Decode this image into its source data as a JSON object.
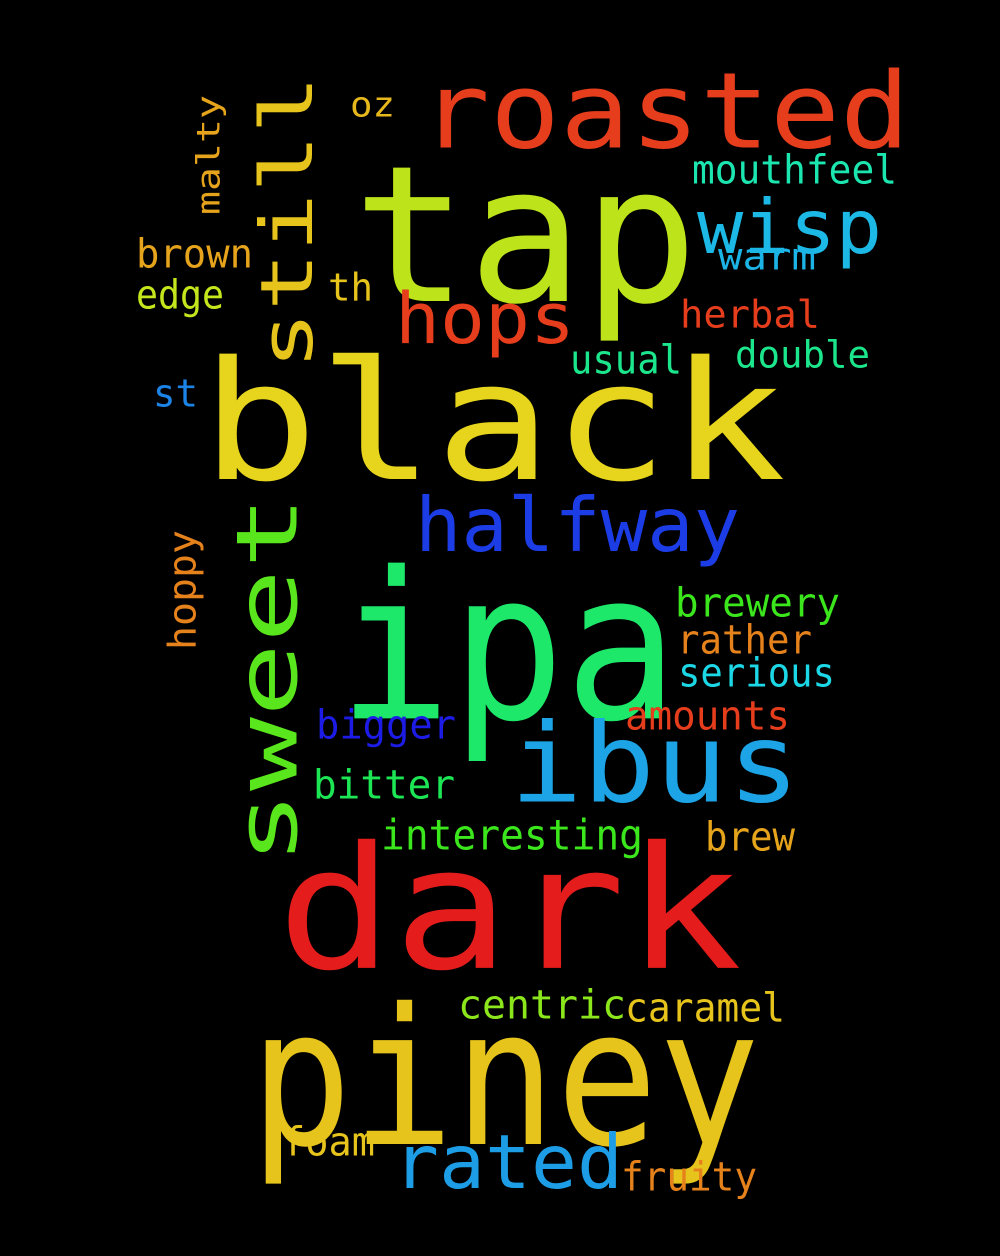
{
  "words": [
    {
      "text": "tap",
      "color": "#bde31a"
    },
    {
      "text": "black",
      "color": "#e6d51c"
    },
    {
      "text": "ipa",
      "color": "#1de86a"
    },
    {
      "text": "dark",
      "color": "#e51c1c"
    },
    {
      "text": "piney",
      "color": "#e6c41c"
    },
    {
      "text": "roasted",
      "color": "#e63d1c"
    },
    {
      "text": "sweet",
      "color": "#5ae61c"
    },
    {
      "text": "ibus",
      "color": "#1ca4e6"
    },
    {
      "text": "still",
      "color": "#e6c41c"
    },
    {
      "text": "halfway",
      "color": "#1c3ce6"
    },
    {
      "text": "rated",
      "color": "#1c9de6"
    },
    {
      "text": "wisp",
      "color": "#1cb8e6"
    },
    {
      "text": "hops",
      "color": "#e63d1c"
    },
    {
      "text": "mouthfeel",
      "color": "#1ce6b0"
    },
    {
      "text": "warm",
      "color": "#1cb4e6"
    },
    {
      "text": "herbal",
      "color": "#e63d1c"
    },
    {
      "text": "double",
      "color": "#1ce68c"
    },
    {
      "text": "usual",
      "color": "#1ce68c"
    },
    {
      "text": "oz",
      "color": "#e6b81c"
    },
    {
      "text": "malty",
      "color": "#e6a41c"
    },
    {
      "text": "brown",
      "color": "#e6a41c"
    },
    {
      "text": "edge",
      "color": "#c4e61c"
    },
    {
      "text": "th",
      "color": "#e6c41c"
    },
    {
      "text": "st",
      "color": "#1c84e6"
    },
    {
      "text": "hoppy",
      "color": "#e6821c"
    },
    {
      "text": "brewery",
      "color": "#3ce61c"
    },
    {
      "text": "rather",
      "color": "#e6821c"
    },
    {
      "text": "serious",
      "color": "#1cd8e6"
    },
    {
      "text": "amounts",
      "color": "#e63d1c"
    },
    {
      "text": "bigger",
      "color": "#1c1ce6"
    },
    {
      "text": "bitter",
      "color": "#1ce654"
    },
    {
      "text": "interesting",
      "color": "#3ce61c"
    },
    {
      "text": "brew",
      "color": "#e6a41c"
    },
    {
      "text": "centric",
      "color": "#8ce61c"
    },
    {
      "text": "caramel",
      "color": "#e6c41c"
    },
    {
      "text": "foam",
      "color": "#e6c41c"
    },
    {
      "text": "fruity",
      "color": "#e6821c"
    }
  ]
}
